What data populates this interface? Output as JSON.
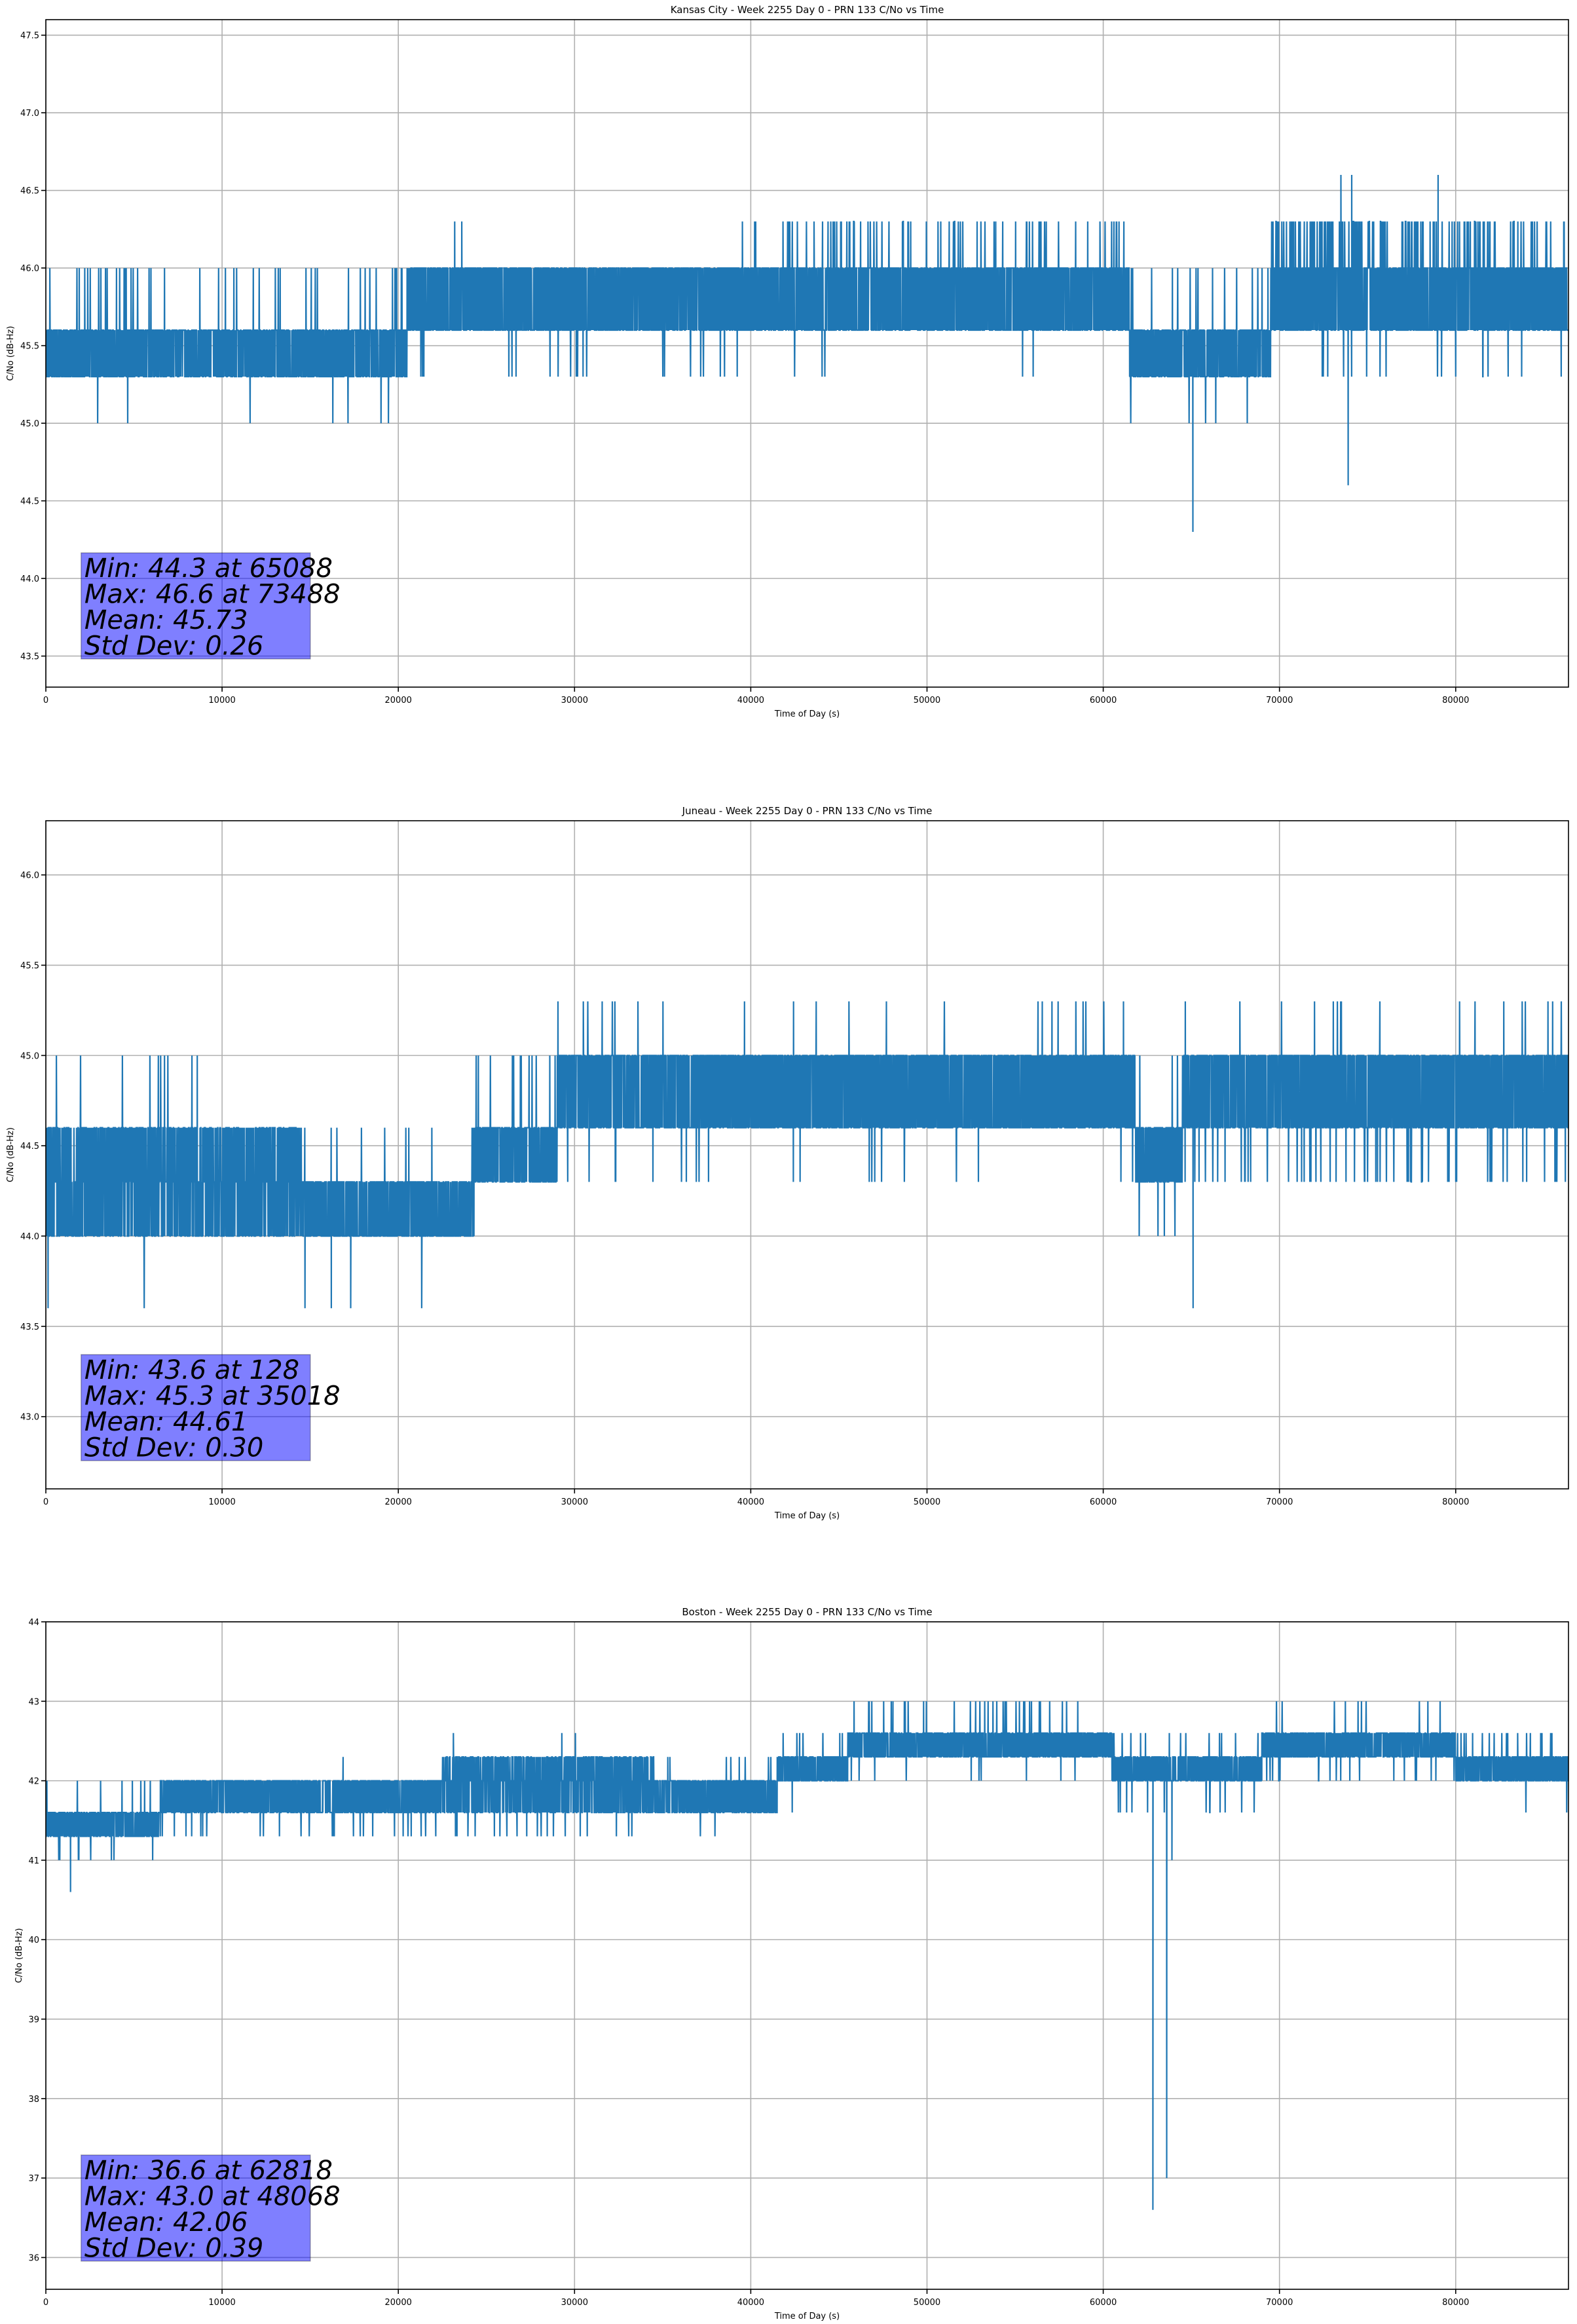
{
  "chart_data": [
    {
      "type": "line",
      "title": "Kansas City - Week 2255 Day 0 - PRN 133 C/No vs Time",
      "xlabel": "Time of Day (s)",
      "ylabel": "C/No (dB-Hz)",
      "xlim": [
        0,
        86400
      ],
      "ylim": [
        43.3,
        47.6
      ],
      "xticks": [
        0,
        10000,
        20000,
        30000,
        40000,
        50000,
        60000,
        70000,
        80000
      ],
      "xtick_labels": [
        "0",
        "10000",
        "20000",
        "30000",
        "40000",
        "50000",
        "60000",
        "70000",
        "80000"
      ],
      "yticks": [
        43.5,
        44.0,
        44.5,
        45.0,
        45.5,
        46.0,
        46.5,
        47.0,
        47.5
      ],
      "ytick_labels": [
        "43.5",
        "44.0",
        "44.5",
        "45.0",
        "45.5",
        "46.0",
        "46.5",
        "47.0",
        "47.5"
      ],
      "grid": true,
      "series": [
        {
          "name": "C/No",
          "color": "#1f77b4",
          "segments": [
            {
              "x": [
                0,
                20500
              ],
              "base": [
                45.3,
                45.6
              ],
              "up": 46.0,
              "up_rate": 0.12,
              "down": 45.0,
              "down_rate": 0.03
            },
            {
              "x": [
                20500,
                39500
              ],
              "base": [
                45.6,
                46.0
              ],
              "up": 46.3,
              "up_rate": 0.005,
              "down": 45.3,
              "down_rate": 0.06
            },
            {
              "x": [
                39500,
                61500
              ],
              "base": [
                45.6,
                46.0
              ],
              "up": 46.3,
              "up_rate": 0.14,
              "down": 45.3,
              "down_rate": 0.005
            },
            {
              "x": [
                61500,
                69500
              ],
              "base": [
                45.3,
                45.6
              ],
              "up": 46.0,
              "up_rate": 0.1,
              "down": 45.0,
              "down_rate": 0.03
            },
            {
              "x": [
                69500,
                86400
              ],
              "base": [
                45.6,
                46.0
              ],
              "up": 46.3,
              "up_rate": 0.35,
              "down": 45.3,
              "down_rate": 0.05
            }
          ],
          "points": [
            {
              "x": 65088,
              "y": 44.3
            },
            {
              "x": 73488,
              "y": 46.6
            },
            {
              "x": 73900,
              "y": 44.6
            },
            {
              "x": 74100,
              "y": 46.6
            },
            {
              "x": 79000,
              "y": 46.6
            },
            {
              "x": 23600,
              "y": 46.3
            }
          ]
        }
      ],
      "stats": {
        "min_line": "Min: 44.3 at 65088",
        "max_line": "Max: 46.6 at 73488",
        "mean_line": "Mean: 45.73",
        "std_line": "Std Dev: 0.26"
      }
    },
    {
      "type": "line",
      "title": "Juneau - Week 2255 Day 0 - PRN 133 C/No vs Time",
      "xlabel": "Time of Day (s)",
      "ylabel": "C/No (dB-Hz)",
      "xlim": [
        0,
        86400
      ],
      "ylim": [
        42.6,
        46.3
      ],
      "xticks": [
        0,
        10000,
        20000,
        30000,
        40000,
        50000,
        60000,
        70000,
        80000
      ],
      "xtick_labels": [
        "0",
        "10000",
        "20000",
        "30000",
        "40000",
        "50000",
        "60000",
        "70000",
        "80000"
      ],
      "yticks": [
        43.0,
        43.5,
        44.0,
        44.5,
        45.0,
        45.5,
        46.0
      ],
      "ytick_labels": [
        "43.0",
        "43.5",
        "44.0",
        "44.5",
        "45.0",
        "45.5",
        "46.0"
      ],
      "grid": true,
      "series": [
        {
          "name": "C/No",
          "color": "#1f77b4",
          "segments": [
            {
              "x": [
                0,
                9500
              ],
              "base": [
                44.0,
                44.3,
                44.6
              ],
              "up": 45.0,
              "up_rate": 0.05,
              "down": 43.6,
              "down_rate": 0.01
            },
            {
              "x": [
                9500,
                14500
              ],
              "base": [
                44.0,
                44.3,
                44.6
              ],
              "up": 45.0,
              "up_rate": 0.02,
              "down": 43.6,
              "down_rate": 0.0
            },
            {
              "x": [
                14500,
                24300
              ],
              "base": [
                44.0,
                44.3
              ],
              "up": 44.6,
              "up_rate": 0.06,
              "down": 43.6,
              "down_rate": 0.01
            },
            {
              "x": [
                24300,
                29000
              ],
              "base": [
                44.3,
                44.6
              ],
              "up": 45.0,
              "up_rate": 0.15,
              "down": 44.0,
              "down_rate": 0.0
            },
            {
              "x": [
                29000,
                61800
              ],
              "base": [
                44.6,
                45.0
              ],
              "up": 45.3,
              "up_rate": 0.03,
              "down": 44.3,
              "down_rate": 0.04
            },
            {
              "x": [
                61800,
                64500
              ],
              "base": [
                44.3,
                44.6
              ],
              "up": 45.0,
              "up_rate": 0.05,
              "down": 44.0,
              "down_rate": 0.05
            },
            {
              "x": [
                64500,
                86400
              ],
              "base": [
                44.6,
                45.0
              ],
              "up": 45.3,
              "up_rate": 0.04,
              "down": 44.3,
              "down_rate": 0.12
            }
          ],
          "points": [
            {
              "x": 128,
              "y": 43.6
            },
            {
              "x": 35018,
              "y": 45.3
            },
            {
              "x": 65100,
              "y": 43.6
            },
            {
              "x": 16200,
              "y": 43.6
            },
            {
              "x": 17300,
              "y": 43.6
            }
          ]
        }
      ],
      "stats": {
        "min_line": "Min: 43.6 at 128",
        "max_line": "Max: 45.3 at 35018",
        "mean_line": "Mean: 44.61",
        "std_line": "Std Dev: 0.30"
      }
    },
    {
      "type": "line",
      "title": "Boston - Week 2255 Day 0 - PRN 133 C/No vs Time",
      "xlabel": "Time of Day (s)",
      "ylabel": "C/No (dB-Hz)",
      "xlim": [
        0,
        86400
      ],
      "ylim": [
        35.6,
        44.0
      ],
      "xticks": [
        0,
        10000,
        20000,
        30000,
        40000,
        50000,
        60000,
        70000,
        80000
      ],
      "xtick_labels": [
        "0",
        "10000",
        "20000",
        "30000",
        "40000",
        "50000",
        "60000",
        "70000",
        "80000"
      ],
      "yticks": [
        36,
        37,
        38,
        39,
        40,
        41,
        42,
        43,
        44
      ],
      "ytick_labels": [
        "36",
        "37",
        "38",
        "39",
        "40",
        "41",
        "42",
        "43",
        "44"
      ],
      "grid": true,
      "series": [
        {
          "name": "C/No",
          "color": "#1f77b4",
          "segments": [
            {
              "x": [
                0,
                6500
              ],
              "base": [
                41.3,
                41.6
              ],
              "up": 42.0,
              "up_rate": 0.08,
              "down": 41.0,
              "down_rate": 0.05
            },
            {
              "x": [
                6500,
                22500
              ],
              "base": [
                41.6,
                42.0
              ],
              "up": 42.3,
              "up_rate": 0.01,
              "down": 41.3,
              "down_rate": 0.08
            },
            {
              "x": [
                22500,
                34500
              ],
              "base": [
                41.6,
                42.0,
                42.3
              ],
              "up": 42.6,
              "up_rate": 0.02,
              "down": 41.3,
              "down_rate": 0.07
            },
            {
              "x": [
                34500,
                41500
              ],
              "base": [
                41.6,
                42.0
              ],
              "up": 42.3,
              "up_rate": 0.08,
              "down": 41.3,
              "down_rate": 0.01
            },
            {
              "x": [
                41500,
                45500
              ],
              "base": [
                42.0,
                42.3
              ],
              "up": 42.6,
              "up_rate": 0.05,
              "down": 41.6,
              "down_rate": 0.02
            },
            {
              "x": [
                45500,
                60500
              ],
              "base": [
                42.3,
                42.6
              ],
              "up": 43.0,
              "up_rate": 0.08,
              "down": 42.0,
              "down_rate": 0.03
            },
            {
              "x": [
                60500,
                69000
              ],
              "base": [
                42.0,
                42.3
              ],
              "up": 42.6,
              "up_rate": 0.08,
              "down": 41.6,
              "down_rate": 0.07
            },
            {
              "x": [
                69000,
                80000
              ],
              "base": [
                42.3,
                42.6
              ],
              "up": 43.0,
              "up_rate": 0.06,
              "down": 42.0,
              "down_rate": 0.04
            },
            {
              "x": [
                80000,
                86400
              ],
              "base": [
                42.0,
                42.3
              ],
              "up": 42.6,
              "up_rate": 0.15,
              "down": 41.6,
              "down_rate": 0.01
            }
          ],
          "points": [
            {
              "x": 62818,
              "y": 36.6
            },
            {
              "x": 63600,
              "y": 37.0
            },
            {
              "x": 48068,
              "y": 43.0
            },
            {
              "x": 1400,
              "y": 40.6
            },
            {
              "x": 63900,
              "y": 41.0
            }
          ]
        }
      ],
      "stats": {
        "min_line": "Min: 36.6 at 62818",
        "max_line": "Max: 43.0 at 48068",
        "mean_line": "Mean: 42.06",
        "std_line": "Std Dev: 0.39"
      }
    }
  ]
}
